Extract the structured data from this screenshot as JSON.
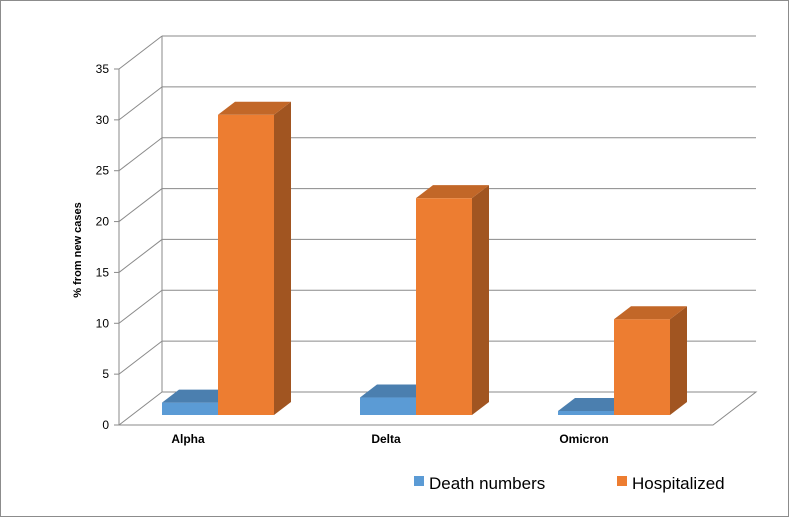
{
  "chart_data": {
    "type": "bar",
    "three_d": true,
    "categories": [
      "Alpha",
      "Delta",
      "Omicron"
    ],
    "series": [
      {
        "name": "Death numbers",
        "values": [
          2.2,
          2.7,
          0.6
        ],
        "color": "#5B9BD5"
      },
      {
        "name": "Hospitalized",
        "values": [
          30.5,
          22.3,
          10.4
        ],
        "color": "#ED7D31"
      }
    ],
    "ylabel": "% from new cases",
    "xlabel": "",
    "title": "",
    "ylim": [
      0,
      35
    ],
    "yticks": [
      0,
      5,
      10,
      15,
      20,
      25,
      30,
      35
    ],
    "grid": true,
    "legend_position": "bottom"
  }
}
